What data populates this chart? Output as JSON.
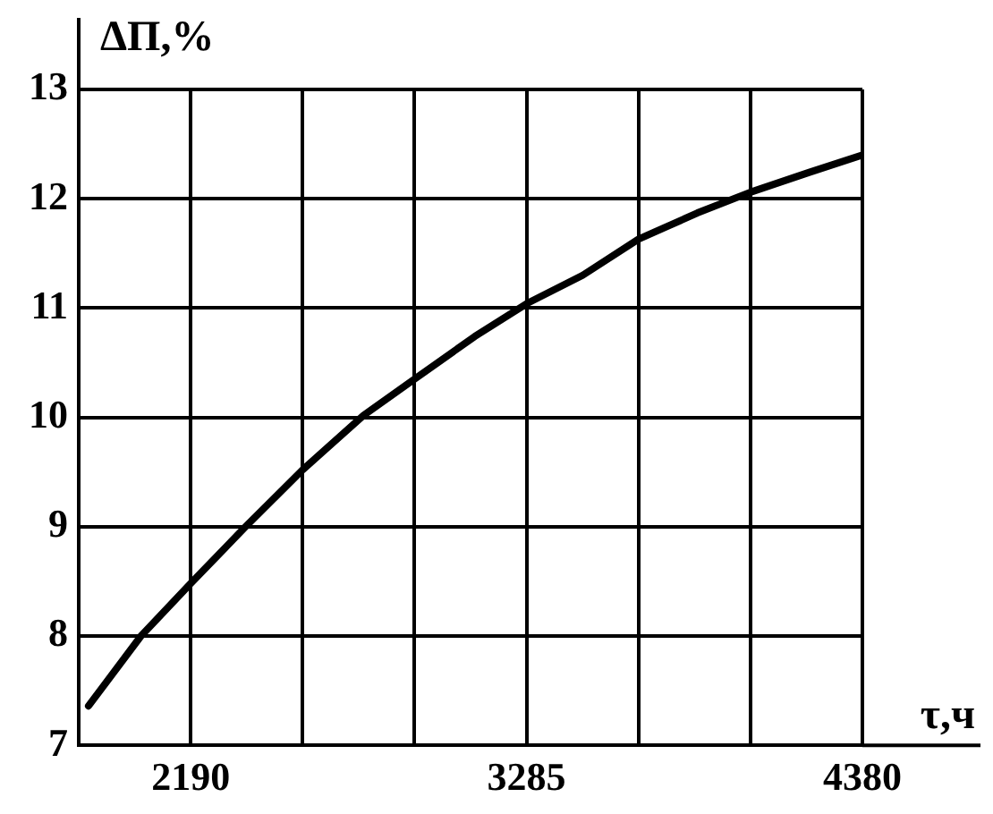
{
  "chart_data": {
    "type": "line",
    "ylabel": "ΔΠ,%",
    "xlabel": "τ,ч",
    "xlim": [
      1825,
      4380
    ],
    "ylim": [
      7,
      13
    ],
    "xticks": [
      {
        "value": 2190,
        "label": "2190"
      },
      {
        "value": 2555,
        "label": null
      },
      {
        "value": 2920,
        "label": null
      },
      {
        "value": 3285,
        "label": "3285"
      },
      {
        "value": 3650,
        "label": null
      },
      {
        "value": 4015,
        "label": null
      },
      {
        "value": 4380,
        "label": "4380"
      }
    ],
    "yticks": [
      7,
      8,
      9,
      10,
      11,
      12,
      13
    ],
    "grid": true,
    "marker": "none",
    "line_style": "solid",
    "series": [
      {
        "color": "#000000",
        "x": [
          1857,
          2028,
          2190,
          2369,
          2555,
          2754,
          2920,
          3116,
          3285,
          3468,
          3650,
          3842,
          4015,
          4205,
          4380
        ],
        "values": [
          7.36,
          8.0,
          8.48,
          9.0,
          9.52,
          10.02,
          10.35,
          10.74,
          11.04,
          11.3,
          11.63,
          11.87,
          12.06,
          12.24,
          12.4
        ]
      }
    ]
  }
}
